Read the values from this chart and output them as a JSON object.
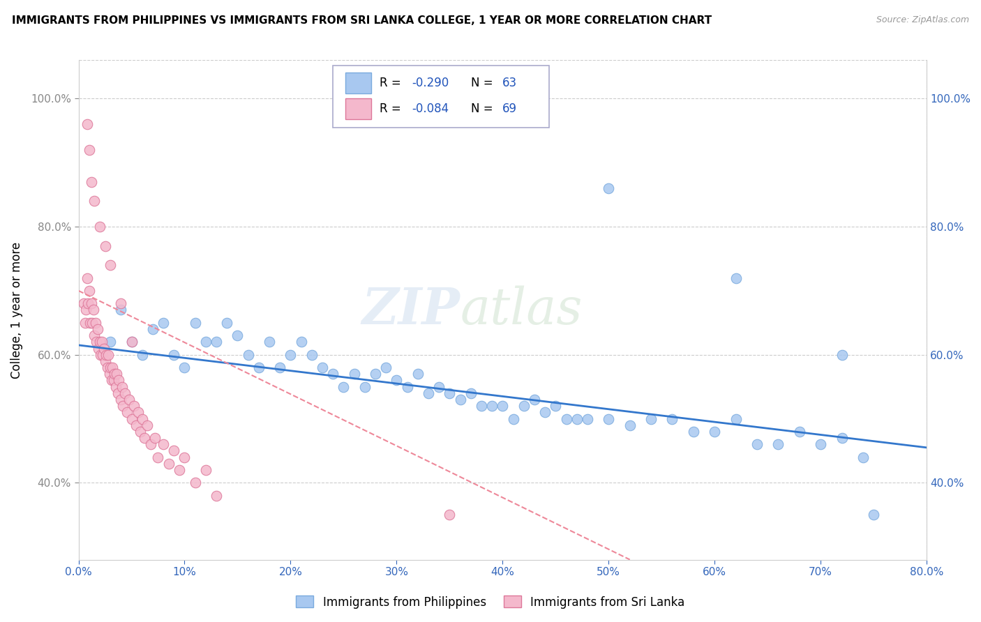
{
  "title": "IMMIGRANTS FROM PHILIPPINES VS IMMIGRANTS FROM SRI LANKA COLLEGE, 1 YEAR OR MORE CORRELATION CHART",
  "source": "Source: ZipAtlas.com",
  "legend_label1": "Immigrants from Philippines",
  "legend_label2": "Immigrants from Sri Lanka",
  "R1": "-0.290",
  "N1": "63",
  "R2": "-0.084",
  "N2": "69",
  "color1": "#a8c8f0",
  "color2": "#f4b8cc",
  "line1_color": "#3377cc",
  "line2_color": "#ee8899",
  "watermark_zip": "ZIP",
  "watermark_atlas": "atlas",
  "xmin": 0.0,
  "xmax": 0.8,
  "ymin": 0.28,
  "ymax": 1.06,
  "yticks": [
    0.4,
    0.6,
    0.8,
    1.0
  ],
  "xticks": [
    0.0,
    0.1,
    0.2,
    0.3,
    0.4,
    0.5,
    0.6,
    0.7,
    0.8
  ],
  "phil_line_x0": 0.0,
  "phil_line_y0": 0.615,
  "phil_line_x1": 0.8,
  "phil_line_y1": 0.455,
  "sl_line_x0": 0.0,
  "sl_line_y0": 0.7,
  "sl_line_x1": 0.52,
  "sl_line_y1": 0.28,
  "phil_x": [
    0.03,
    0.04,
    0.05,
    0.06,
    0.07,
    0.08,
    0.09,
    0.1,
    0.11,
    0.12,
    0.13,
    0.14,
    0.15,
    0.16,
    0.17,
    0.18,
    0.19,
    0.2,
    0.21,
    0.22,
    0.23,
    0.24,
    0.25,
    0.26,
    0.27,
    0.28,
    0.29,
    0.3,
    0.31,
    0.32,
    0.33,
    0.34,
    0.35,
    0.36,
    0.37,
    0.38,
    0.39,
    0.4,
    0.41,
    0.42,
    0.43,
    0.44,
    0.45,
    0.46,
    0.47,
    0.48,
    0.5,
    0.52,
    0.54,
    0.56,
    0.58,
    0.6,
    0.62,
    0.64,
    0.66,
    0.68,
    0.7,
    0.72,
    0.74,
    0.5,
    0.62,
    0.72,
    0.75
  ],
  "phil_y": [
    0.62,
    0.67,
    0.62,
    0.6,
    0.64,
    0.65,
    0.6,
    0.58,
    0.65,
    0.62,
    0.62,
    0.65,
    0.63,
    0.6,
    0.58,
    0.62,
    0.58,
    0.6,
    0.62,
    0.6,
    0.58,
    0.57,
    0.55,
    0.57,
    0.55,
    0.57,
    0.58,
    0.56,
    0.55,
    0.57,
    0.54,
    0.55,
    0.54,
    0.53,
    0.54,
    0.52,
    0.52,
    0.52,
    0.5,
    0.52,
    0.53,
    0.51,
    0.52,
    0.5,
    0.5,
    0.5,
    0.5,
    0.49,
    0.5,
    0.5,
    0.48,
    0.48,
    0.5,
    0.46,
    0.46,
    0.48,
    0.46,
    0.47,
    0.44,
    0.86,
    0.72,
    0.6,
    0.35
  ],
  "sl_x": [
    0.005,
    0.006,
    0.007,
    0.008,
    0.009,
    0.01,
    0.011,
    0.012,
    0.013,
    0.014,
    0.015,
    0.016,
    0.017,
    0.018,
    0.019,
    0.02,
    0.021,
    0.022,
    0.023,
    0.024,
    0.025,
    0.026,
    0.027,
    0.028,
    0.029,
    0.03,
    0.031,
    0.032,
    0.033,
    0.034,
    0.035,
    0.036,
    0.037,
    0.038,
    0.04,
    0.041,
    0.042,
    0.044,
    0.046,
    0.048,
    0.05,
    0.052,
    0.054,
    0.056,
    0.058,
    0.06,
    0.062,
    0.065,
    0.068,
    0.072,
    0.075,
    0.08,
    0.085,
    0.09,
    0.095,
    0.1,
    0.11,
    0.12,
    0.13,
    0.008,
    0.01,
    0.012,
    0.015,
    0.02,
    0.025,
    0.03,
    0.04,
    0.05,
    0.35
  ],
  "sl_y": [
    0.68,
    0.65,
    0.67,
    0.72,
    0.68,
    0.7,
    0.65,
    0.68,
    0.65,
    0.67,
    0.63,
    0.65,
    0.62,
    0.64,
    0.61,
    0.62,
    0.6,
    0.62,
    0.6,
    0.61,
    0.59,
    0.6,
    0.58,
    0.6,
    0.57,
    0.58,
    0.56,
    0.58,
    0.56,
    0.57,
    0.55,
    0.57,
    0.54,
    0.56,
    0.53,
    0.55,
    0.52,
    0.54,
    0.51,
    0.53,
    0.5,
    0.52,
    0.49,
    0.51,
    0.48,
    0.5,
    0.47,
    0.49,
    0.46,
    0.47,
    0.44,
    0.46,
    0.43,
    0.45,
    0.42,
    0.44,
    0.4,
    0.42,
    0.38,
    0.96,
    0.92,
    0.87,
    0.84,
    0.8,
    0.77,
    0.74,
    0.68,
    0.62,
    0.35
  ]
}
